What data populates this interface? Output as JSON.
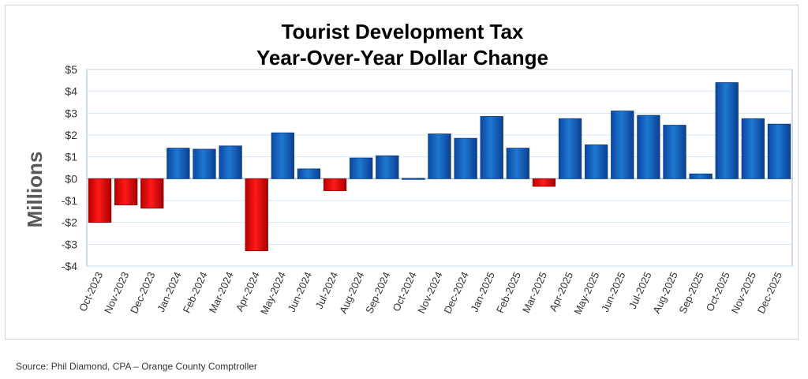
{
  "chart_data": {
    "type": "bar",
    "title": [
      "Tourist Development Tax",
      "Year-Over-Year Dollar Change"
    ],
    "ylabel": "Millions",
    "xlabel": "",
    "ylim": [
      -4,
      5
    ],
    "ytick_values": [
      5,
      4,
      3,
      2,
      1,
      0,
      -1,
      -2,
      -3,
      -4
    ],
    "ytick_labels": [
      "$5",
      "$4",
      "$3",
      "$2",
      "$1",
      "$0",
      "-$1",
      "-$2",
      "-$3",
      "-$4"
    ],
    "grid": true,
    "categories": [
      "Oct-2023",
      "Nov-2023",
      "Dec-2023",
      "Jan-2024",
      "Feb-2024",
      "Mar-2024",
      "Apr-2024",
      "May-2024",
      "Jun-2024",
      "Jul-2024",
      "Aug-2024",
      "Sep-2024",
      "Oct-2024",
      "Nov-2024",
      "Dec-2024",
      "Jan-2025",
      "Feb-2025",
      "Mar-2025",
      "Apr-2025",
      "May-2025",
      "Jun-2025",
      "Jul-2025",
      "Aug-2025",
      "Sep-2025",
      "Oct-2025",
      "Nov-2025",
      "Dec-2025"
    ],
    "values": [
      -2.0,
      -1.2,
      -1.35,
      1.4,
      1.35,
      1.5,
      -3.3,
      2.1,
      0.45,
      -0.55,
      0.95,
      1.05,
      0.02,
      2.05,
      1.85,
      2.85,
      1.4,
      -0.35,
      2.75,
      1.55,
      3.1,
      2.9,
      2.45,
      0.22,
      4.4,
      2.75,
      2.5
    ],
    "colors": {
      "positive": "#1565c0",
      "negative": "#e00000",
      "grid": "#d6e6f5",
      "axis": "#a9c4e0"
    }
  },
  "source": "Source:  Phil Diamond, CPA – Orange County Comptroller"
}
